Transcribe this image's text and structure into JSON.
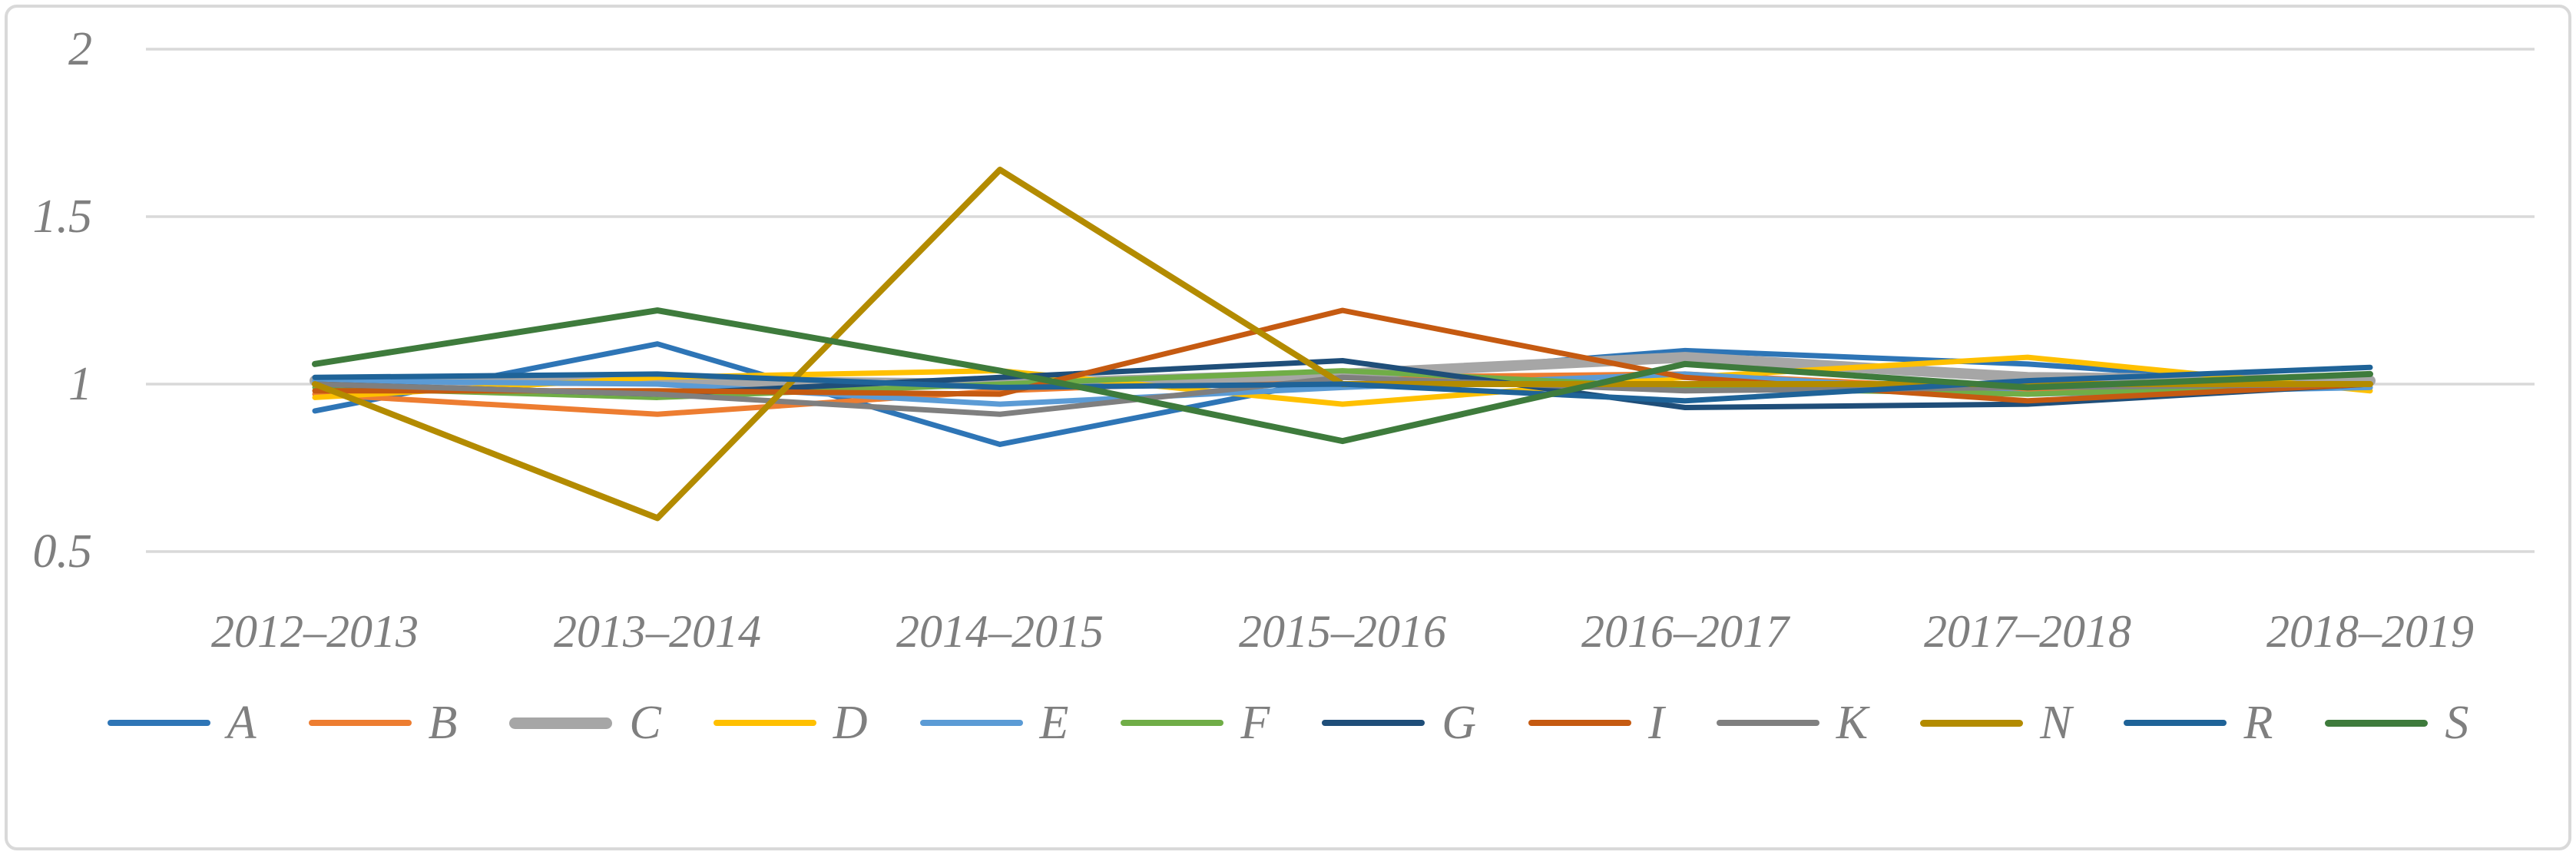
{
  "figure": {
    "background_color": "#FFFFFF",
    "border_color": "#D9D9D9",
    "text_color": "#7F7F7F",
    "grid_color": "#D9D9D9"
  },
  "chart_data": {
    "type": "line",
    "title": "",
    "xlabel": "",
    "ylabel": "",
    "grid": true,
    "legend_position": "bottom",
    "ylim": [
      0.4,
      2.05
    ],
    "y_axis": {
      "ticks": [
        {
          "label": "2",
          "value": 2
        },
        {
          "label": "1.5",
          "value": 1.5
        },
        {
          "label": "1",
          "value": 1
        },
        {
          "label": "0.5",
          "value": 0.5
        }
      ]
    },
    "categories": [
      "2012–2013",
      "2013–2014",
      "2014–2015",
      "2015–2016",
      "2016–2017",
      "2017–2018",
      "2018–2019"
    ],
    "series": [
      {
        "name": "A",
        "color": "#2E75B6",
        "line_width": 7,
        "values": [
          0.92,
          1.12,
          0.82,
          1.02,
          1.1,
          1.06,
          0.99
        ]
      },
      {
        "name": "B",
        "color": "#ED7D31",
        "line_width": 7,
        "values": [
          0.97,
          0.91,
          0.98,
          1.02,
          1.03,
          0.98,
          1.0
        ]
      },
      {
        "name": "C",
        "color": "#A6A6A6",
        "line_width": 14,
        "values": [
          1.01,
          1.01,
          1.0,
          1.03,
          1.08,
          1.02,
          1.01
        ]
      },
      {
        "name": "D",
        "color": "#FFC000",
        "line_width": 7,
        "values": [
          0.96,
          1.02,
          1.04,
          0.94,
          1.02,
          1.08,
          0.98
        ]
      },
      {
        "name": "E",
        "color": "#5B9BD5",
        "line_width": 7,
        "values": [
          1.01,
          1.0,
          0.94,
          0.99,
          1.03,
          0.97,
          0.99
        ]
      },
      {
        "name": "F",
        "color": "#70AD47",
        "line_width": 7,
        "values": [
          0.99,
          0.96,
          1.0,
          1.04,
          0.99,
          0.97,
          1.0
        ]
      },
      {
        "name": "G",
        "color": "#1F4E79",
        "line_width": 7,
        "values": [
          1.0,
          0.97,
          1.02,
          1.07,
          0.93,
          0.94,
          1.0
        ]
      },
      {
        "name": "I",
        "color": "#C55A11",
        "line_width": 7,
        "values": [
          0.98,
          0.98,
          0.97,
          1.22,
          1.02,
          0.95,
          1.0
        ]
      },
      {
        "name": "K",
        "color": "#7F7F7F",
        "line_width": 7,
        "values": [
          1.0,
          0.97,
          0.91,
          1.02,
          0.98,
          0.99,
          1.0
        ]
      },
      {
        "name": "N",
        "color": "#B38B00",
        "line_width": 8,
        "values": [
          1.0,
          0.6,
          1.64,
          1.0,
          1.0,
          1.0,
          1.0
        ]
      },
      {
        "name": "R",
        "color": "#1F6398",
        "line_width": 7,
        "values": [
          1.02,
          1.03,
          0.99,
          1.0,
          0.95,
          1.01,
          1.05
        ]
      },
      {
        "name": "S",
        "color": "#3E7B3C",
        "line_width": 8,
        "values": [
          1.06,
          1.22,
          1.04,
          0.83,
          1.06,
          0.99,
          1.03
        ]
      }
    ]
  }
}
